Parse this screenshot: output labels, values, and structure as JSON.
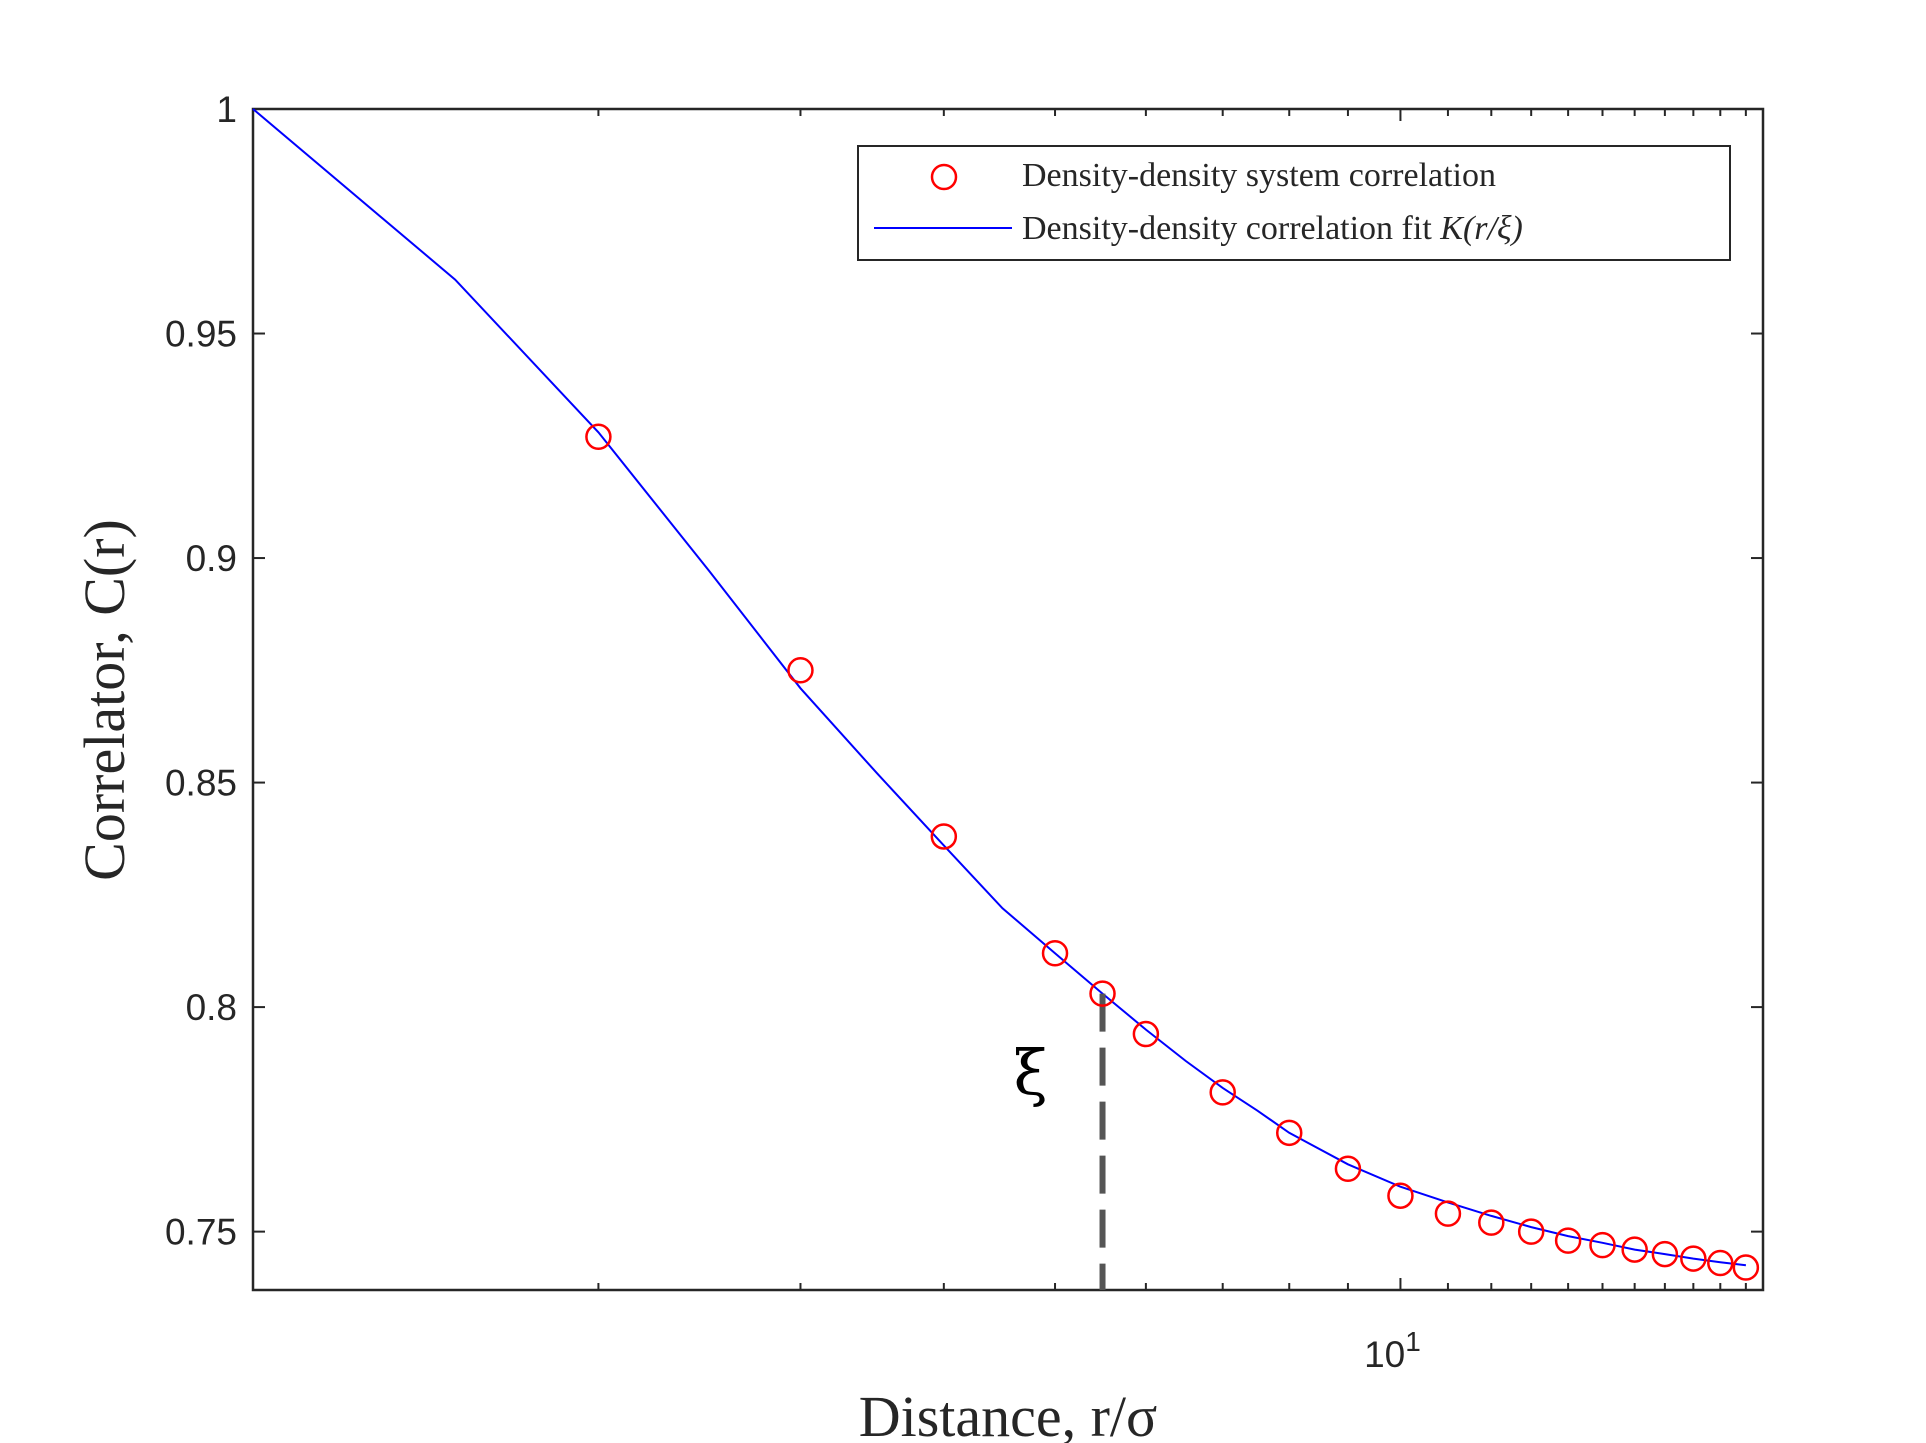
{
  "chart_data": {
    "type": "scatter",
    "xscale": "log",
    "xlabel": "Distance, r/σ",
    "ylabel": "Correlator, C(r)",
    "xlim": [
      1,
      20.7
    ],
    "ylim": [
      0.737,
      1.0
    ],
    "xticks": [
      {
        "value": 10,
        "base": "10",
        "exp": "1"
      }
    ],
    "yticks": [
      {
        "value": 1.0,
        "label": "1"
      },
      {
        "value": 0.95,
        "label": "0.95"
      },
      {
        "value": 0.9,
        "label": "0.9"
      },
      {
        "value": 0.85,
        "label": "0.85"
      },
      {
        "value": 0.8,
        "label": "0.8"
      },
      {
        "value": 0.75,
        "label": "0.75"
      }
    ],
    "grid": false,
    "legend_position": "top-right",
    "series": [
      {
        "name": "Density-density system correlation",
        "kind": "markers",
        "marker": "open-circle",
        "color": "#ff0000",
        "x": [
          2,
          3,
          4,
          5,
          5.5,
          6,
          7,
          8,
          9,
          10,
          11,
          12,
          13,
          14,
          15,
          16,
          17,
          18,
          19,
          20
        ],
        "y": [
          0.927,
          0.875,
          0.838,
          0.812,
          0.803,
          0.794,
          0.781,
          0.772,
          0.764,
          0.758,
          0.754,
          0.752,
          0.75,
          0.748,
          0.747,
          0.746,
          0.745,
          0.744,
          0.743,
          0.742
        ]
      },
      {
        "name_prefix": "Density-density correlation fit ",
        "name_math": "K(r/ξ)",
        "kind": "line",
        "color": "#0000ff",
        "x": [
          1,
          1.5,
          2,
          2.5,
          3,
          3.5,
          4,
          4.5,
          5,
          5.5,
          6,
          6.5,
          7,
          7.5,
          8,
          9,
          10,
          11,
          12,
          13,
          14,
          15,
          16,
          17,
          18,
          19,
          20
        ],
        "y": [
          1.0,
          0.962,
          0.928,
          0.897,
          0.871,
          0.852,
          0.836,
          0.822,
          0.812,
          0.803,
          0.795,
          0.788,
          0.782,
          0.777,
          0.772,
          0.765,
          0.76,
          0.7565,
          0.7535,
          0.751,
          0.749,
          0.7475,
          0.746,
          0.745,
          0.744,
          0.7432,
          0.7425
        ]
      }
    ],
    "annotations": [
      {
        "type": "dashed-vertical-line",
        "x": 5.5,
        "y_from": 0.737,
        "y_to": 0.803,
        "color": "#555555"
      },
      {
        "type": "text",
        "text": "ξ",
        "x": 5.5,
        "y": 0.79
      }
    ]
  }
}
